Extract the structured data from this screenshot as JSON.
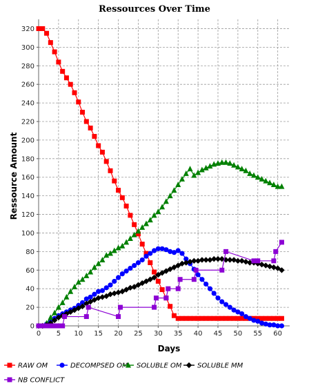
{
  "chart_data": {
    "type": "line",
    "title": "Ressources Over Time",
    "xlabel": "Days",
    "ylabel": "Ressource Amount",
    "xlim": [
      0,
      63
    ],
    "ylim": [
      0,
      330
    ],
    "xticks": [
      0,
      5,
      10,
      15,
      20,
      25,
      30,
      35,
      40,
      45,
      50,
      55,
      60
    ],
    "yticks": [
      0,
      20,
      40,
      60,
      80,
      100,
      120,
      140,
      160,
      180,
      200,
      220,
      240,
      260,
      280,
      300,
      320
    ],
    "grid": true,
    "legend_position": "bottom",
    "series": [
      {
        "name": "RAW OM",
        "color": "#ff0000",
        "marker": "square",
        "x": [
          0,
          1,
          2,
          3,
          4,
          5,
          6,
          7,
          8,
          9,
          10,
          11,
          12,
          13,
          14,
          15,
          16,
          17,
          18,
          19,
          20,
          21,
          22,
          23,
          24,
          25,
          26,
          27,
          28,
          29,
          30,
          31,
          32,
          33,
          34,
          35,
          36,
          37,
          38,
          39,
          40,
          41,
          42,
          43,
          44,
          45,
          46,
          47,
          48,
          49,
          50,
          51,
          52,
          53,
          54,
          55,
          56,
          57,
          58,
          59,
          60,
          61
        ],
        "y": [
          320,
          320,
          315,
          305,
          295,
          284,
          274,
          267,
          260,
          251,
          241,
          230,
          220,
          213,
          204,
          194,
          187,
          177,
          167,
          156,
          146,
          138,
          129,
          119,
          109,
          99,
          88,
          78,
          68,
          58,
          48,
          39,
          30,
          21,
          11,
          8,
          8,
          8,
          8,
          8,
          8,
          8,
          8,
          8,
          8,
          8,
          8,
          8,
          8,
          8,
          8,
          8,
          8,
          8,
          8,
          8,
          8,
          8,
          8,
          8,
          8,
          8
        ]
      },
      {
        "name": "DECOMPSED OM",
        "color": "#0000ff",
        "marker": "circle",
        "x": [
          0,
          1,
          2,
          3,
          4,
          5,
          6,
          7,
          8,
          9,
          10,
          11,
          12,
          13,
          14,
          15,
          16,
          17,
          18,
          19,
          20,
          21,
          22,
          23,
          24,
          25,
          26,
          27,
          28,
          29,
          30,
          31,
          32,
          33,
          34,
          35,
          36,
          37,
          38,
          39,
          40,
          41,
          42,
          43,
          44,
          45,
          46,
          47,
          48,
          49,
          50,
          51,
          52,
          53,
          54,
          55,
          56,
          57,
          58,
          59,
          60,
          61
        ],
        "y": [
          0,
          0,
          2,
          5,
          8,
          11,
          13,
          15,
          17,
          19,
          22,
          25,
          29,
          31,
          34,
          37,
          38,
          41,
          44,
          48,
          52,
          56,
          59,
          62,
          65,
          68,
          71,
          75,
          78,
          81,
          83,
          83,
          82,
          80,
          79,
          81,
          78,
          72,
          67,
          61,
          55,
          50,
          45,
          40,
          35,
          30,
          26,
          23,
          20,
          17,
          15,
          13,
          10,
          8,
          6,
          5,
          3,
          2,
          1,
          1,
          0,
          0
        ]
      },
      {
        "name": "SOLUBLE OM",
        "color": "#008000",
        "marker": "triangle",
        "x": [
          0,
          1,
          2,
          3,
          4,
          5,
          6,
          7,
          8,
          9,
          10,
          11,
          12,
          13,
          14,
          15,
          16,
          17,
          18,
          19,
          20,
          21,
          22,
          23,
          24,
          25,
          26,
          27,
          28,
          29,
          30,
          31,
          32,
          33,
          34,
          35,
          36,
          37,
          38,
          39,
          40,
          41,
          42,
          43,
          44,
          45,
          46,
          47,
          48,
          49,
          50,
          51,
          52,
          53,
          54,
          55,
          56,
          57,
          58,
          59,
          60,
          61
        ],
        "y": [
          0,
          0,
          3,
          9,
          14,
          20,
          25,
          31,
          37,
          42,
          47,
          50,
          54,
          58,
          63,
          67,
          71,
          76,
          78,
          81,
          84,
          86,
          90,
          94,
          98,
          102,
          106,
          110,
          114,
          119,
          123,
          128,
          134,
          140,
          146,
          152,
          158,
          164,
          169,
          162,
          165,
          168,
          170,
          172,
          174,
          175,
          176,
          176,
          175,
          173,
          171,
          169,
          167,
          164,
          162,
          160,
          158,
          156,
          154,
          152,
          150,
          150
        ]
      },
      {
        "name": "SOLUBLE MM",
        "color": "#000000",
        "marker": "diamond",
        "x": [
          0,
          1,
          2,
          3,
          4,
          5,
          6,
          7,
          8,
          9,
          10,
          11,
          12,
          13,
          14,
          15,
          16,
          17,
          18,
          19,
          20,
          21,
          22,
          23,
          24,
          25,
          26,
          27,
          28,
          29,
          30,
          31,
          32,
          33,
          34,
          35,
          36,
          37,
          38,
          39,
          40,
          41,
          42,
          43,
          44,
          45,
          46,
          47,
          48,
          49,
          50,
          51,
          52,
          53,
          54,
          55,
          56,
          57,
          58,
          59,
          60,
          61
        ],
        "y": [
          0,
          0,
          1,
          3,
          6,
          9,
          11,
          13,
          15,
          17,
          19,
          21,
          24,
          26,
          28,
          30,
          31,
          32,
          34,
          35,
          36,
          37,
          39,
          41,
          42,
          44,
          46,
          48,
          50,
          52,
          55,
          57,
          59,
          61,
          63,
          65,
          67,
          68,
          69,
          70,
          70,
          71,
          71,
          71,
          72,
          72,
          72,
          71,
          71,
          71,
          70,
          70,
          69,
          68,
          68,
          67,
          66,
          65,
          64,
          63,
          62,
          60
        ]
      },
      {
        "name": "NB CONFLICT",
        "color": "#8c00d4",
        "marker": "square",
        "x": [
          0,
          1,
          2,
          3,
          4,
          5,
          6,
          6.5,
          12,
          12.5,
          20,
          20.5,
          29,
          29.5,
          32,
          32.5,
          35,
          35.5,
          39,
          39.5,
          46,
          47,
          54,
          55,
          59,
          59.5,
          61
        ],
        "y": [
          0,
          0,
          0,
          0,
          0,
          0,
          0,
          10,
          10,
          20,
          10,
          20,
          20,
          30,
          30,
          40,
          40,
          50,
          50,
          60,
          60,
          80,
          70,
          70,
          70,
          80,
          90
        ]
      }
    ]
  }
}
